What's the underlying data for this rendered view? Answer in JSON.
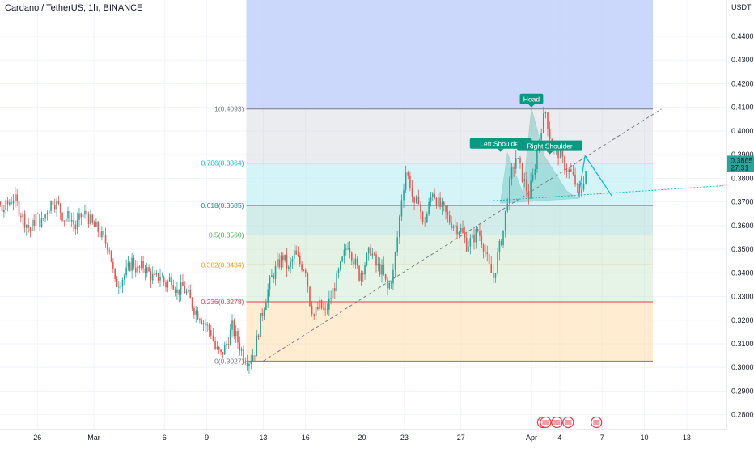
{
  "header": {
    "title": "Cardano / TetherUS, 1h, BINANCE"
  },
  "chart_data": {
    "type": "candlestick",
    "symbol": "Cardano / TetherUS",
    "interval": "1h",
    "exchange": "BINANCE",
    "currency": "USDT",
    "y_ticks": [
      "0.4400",
      "0.4300",
      "0.4200",
      "0.4100",
      "0.4000",
      "0.3900",
      "0.3800",
      "0.3700",
      "0.3600",
      "0.3500",
      "0.3400",
      "0.3300",
      "0.3200",
      "0.3100",
      "0.3000",
      "0.2900",
      "0.2800"
    ],
    "ylim": [
      0.2775,
      0.453
    ],
    "x_ticks": [
      "23",
      "26",
      "Mar",
      "6",
      "9",
      "13",
      "16",
      "20",
      "23",
      "27",
      "Apr",
      "4",
      "7",
      "10",
      "13"
    ],
    "x_tick_days": [
      -7,
      -4,
      0,
      5,
      8,
      12,
      15,
      19,
      22,
      26,
      31,
      33,
      36,
      39,
      42
    ],
    "last_price": {
      "value": "0.3865",
      "countdown": "27:31"
    },
    "fibonacci": [
      {
        "label": "1(0.4093)",
        "price": 0.4093,
        "color": "#787b86"
      },
      {
        "label": "0.786(0.3864)",
        "price": 0.3864,
        "color": "#00bcd4"
      },
      {
        "label": "0.618(0.3685)",
        "price": 0.3685,
        "color": "#089981"
      },
      {
        "label": "0.5(0.3560)",
        "price": 0.356,
        "color": "#4caf50"
      },
      {
        "label": "0.382(0.3434)",
        "price": 0.3434,
        "color": "#ff9800"
      },
      {
        "label": "0.236(0.3278)",
        "price": 0.3278,
        "color": "#f23645"
      },
      {
        "label": "0(0.3027)",
        "price": 0.3027,
        "color": "#787b86"
      }
    ],
    "annotations": [
      {
        "text": "Left Shoulder",
        "day": 28.8,
        "price": 0.3905
      },
      {
        "text": "Head",
        "day": 31.0,
        "price": 0.4093
      },
      {
        "text": "Right Shoulder",
        "day": 32.3,
        "price": 0.3895
      }
    ],
    "close_series": [
      [
        -9.0,
        0.389
      ],
      [
        -8.6,
        0.392
      ],
      [
        -8.3,
        0.387
      ],
      [
        -8.0,
        0.383
      ],
      [
        -7.6,
        0.372
      ],
      [
        -7.3,
        0.368
      ],
      [
        -6.9,
        0.371
      ],
      [
        -6.5,
        0.366
      ],
      [
        -6.1,
        0.369
      ],
      [
        -5.7,
        0.372
      ],
      [
        -5.3,
        0.367
      ],
      [
        -4.9,
        0.362
      ],
      [
        -4.5,
        0.358
      ],
      [
        -4.1,
        0.364
      ],
      [
        -3.7,
        0.361
      ],
      [
        -3.3,
        0.367
      ],
      [
        -2.9,
        0.371
      ],
      [
        -2.5,
        0.368
      ],
      [
        -2.1,
        0.363
      ],
      [
        -1.7,
        0.364
      ],
      [
        -1.3,
        0.359
      ],
      [
        -0.9,
        0.364
      ],
      [
        -0.5,
        0.365
      ],
      [
        -0.1,
        0.36
      ],
      [
        0.3,
        0.358
      ],
      [
        0.7,
        0.354
      ],
      [
        1.1,
        0.351
      ],
      [
        1.5,
        0.335
      ],
      [
        1.9,
        0.337
      ],
      [
        2.3,
        0.34
      ],
      [
        2.7,
        0.345
      ],
      [
        3.1,
        0.341
      ],
      [
        3.5,
        0.343
      ],
      [
        3.9,
        0.34
      ],
      [
        4.3,
        0.337
      ],
      [
        4.7,
        0.339
      ],
      [
        5.1,
        0.335
      ],
      [
        5.5,
        0.338
      ],
      [
        5.9,
        0.332
      ],
      [
        6.3,
        0.334
      ],
      [
        6.7,
        0.33
      ],
      [
        7.1,
        0.325
      ],
      [
        7.5,
        0.322
      ],
      [
        7.9,
        0.318
      ],
      [
        8.3,
        0.315
      ],
      [
        8.6,
        0.308
      ],
      [
        9.0,
        0.305
      ],
      [
        9.4,
        0.31
      ],
      [
        9.8,
        0.317
      ],
      [
        10.2,
        0.311
      ],
      [
        10.6,
        0.305
      ],
      [
        11.0,
        0.303
      ],
      [
        11.4,
        0.307
      ],
      [
        11.8,
        0.32
      ],
      [
        12.2,
        0.33
      ],
      [
        12.6,
        0.338
      ],
      [
        13.0,
        0.343
      ],
      [
        13.4,
        0.347
      ],
      [
        13.8,
        0.341
      ],
      [
        14.2,
        0.348
      ],
      [
        14.6,
        0.344
      ],
      [
        15.0,
        0.342
      ],
      [
        15.3,
        0.328
      ],
      [
        15.6,
        0.322
      ],
      [
        16.0,
        0.326
      ],
      [
        16.4,
        0.323
      ],
      [
        16.8,
        0.33
      ],
      [
        17.2,
        0.337
      ],
      [
        17.6,
        0.345
      ],
      [
        18.0,
        0.353
      ],
      [
        18.4,
        0.346
      ],
      [
        18.8,
        0.339
      ],
      [
        19.2,
        0.344
      ],
      [
        19.6,
        0.35
      ],
      [
        20.0,
        0.343
      ],
      [
        20.4,
        0.341
      ],
      [
        20.8,
        0.333
      ],
      [
        21.2,
        0.34
      ],
      [
        21.5,
        0.355
      ],
      [
        21.8,
        0.372
      ],
      [
        22.1,
        0.383
      ],
      [
        22.4,
        0.378
      ],
      [
        22.7,
        0.367
      ],
      [
        23.0,
        0.372
      ],
      [
        23.3,
        0.36
      ],
      [
        23.6,
        0.365
      ],
      [
        24.0,
        0.375
      ],
      [
        24.4,
        0.369
      ],
      [
        24.8,
        0.366
      ],
      [
        25.2,
        0.362
      ],
      [
        25.6,
        0.36
      ],
      [
        26.0,
        0.358
      ],
      [
        26.4,
        0.352
      ],
      [
        26.8,
        0.354
      ],
      [
        27.2,
        0.358
      ],
      [
        27.6,
        0.352
      ],
      [
        28.0,
        0.342
      ],
      [
        28.3,
        0.338
      ],
      [
        28.6,
        0.347
      ],
      [
        29.0,
        0.358
      ],
      [
        29.3,
        0.372
      ],
      [
        29.6,
        0.382
      ],
      [
        29.9,
        0.389
      ],
      [
        30.2,
        0.384
      ],
      [
        30.5,
        0.378
      ],
      [
        30.8,
        0.373
      ],
      [
        31.1,
        0.38
      ],
      [
        31.4,
        0.392
      ],
      [
        31.7,
        0.402
      ],
      [
        32.0,
        0.408
      ],
      [
        32.3,
        0.398
      ],
      [
        32.6,
        0.392
      ],
      [
        32.9,
        0.391
      ],
      [
        33.2,
        0.387
      ],
      [
        33.5,
        0.384
      ],
      [
        33.8,
        0.382
      ],
      [
        34.1,
        0.378
      ],
      [
        34.4,
        0.372
      ],
      [
        34.7,
        0.38
      ],
      [
        35.0,
        0.3865
      ]
    ],
    "head_shoulders_points": [
      [
        28.8,
        0.3695
      ],
      [
        29.3,
        0.3905
      ],
      [
        30.4,
        0.3735
      ],
      [
        31.0,
        0.4093
      ],
      [
        31.9,
        0.3895
      ],
      [
        33.5,
        0.3745
      ],
      [
        34.3,
        0.3715
      ]
    ],
    "neckline": [
      [
        28.3,
        0.3705
      ],
      [
        40.0,
        0.3755
      ]
    ],
    "trendline": [
      [
        12.0,
        0.3027
      ],
      [
        40.2,
        0.4093
      ]
    ],
    "projection": [
      [
        34.3,
        0.3715
      ],
      [
        34.8,
        0.3895
      ],
      [
        36.7,
        0.3725
      ]
    ]
  }
}
